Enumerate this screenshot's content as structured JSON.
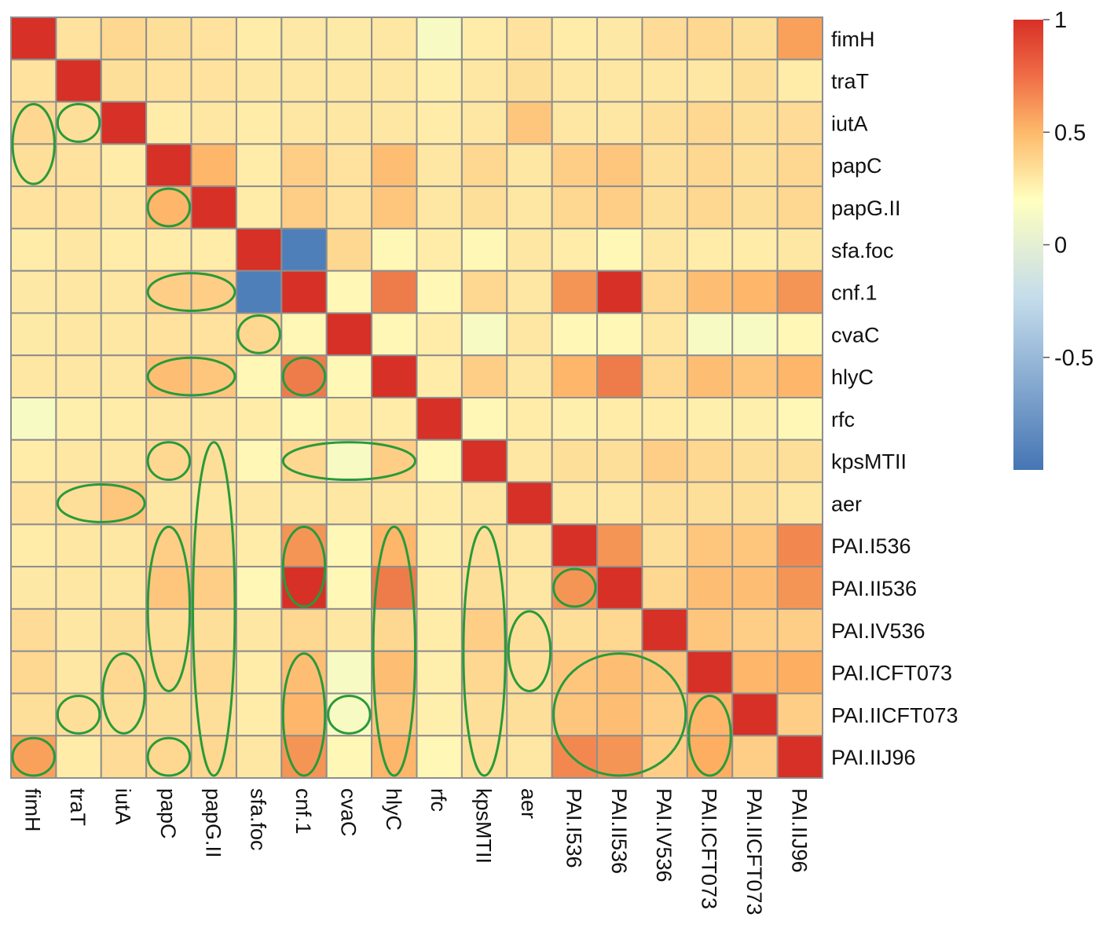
{
  "chart_data": {
    "type": "heatmap",
    "title": "",
    "xlabel": "",
    "ylabel": "",
    "genes": [
      "fimH",
      "traT",
      "iutA",
      "papC",
      "papG.II",
      "sfa.foc",
      "cnf.1",
      "cvaC",
      "hlyC",
      "rfc",
      "kpsMTII",
      "aer",
      "PAI.I536",
      "PAI.II536",
      "PAI.IV536",
      "PAI.ICFT073",
      "PAI.IICFT073",
      "PAI.IIJ96"
    ],
    "values": [
      [
        1.0,
        0.18,
        0.25,
        0.2,
        0.18,
        0.12,
        0.14,
        0.13,
        0.15,
        -0.05,
        0.12,
        0.18,
        0.12,
        0.14,
        0.22,
        0.25,
        0.2,
        0.55
      ],
      [
        0.18,
        1.0,
        0.2,
        0.18,
        0.18,
        0.15,
        0.15,
        0.15,
        0.15,
        0.1,
        0.15,
        0.2,
        0.15,
        0.15,
        0.15,
        0.15,
        0.2,
        0.12
      ],
      [
        0.25,
        0.2,
        1.0,
        0.12,
        0.15,
        0.12,
        0.15,
        0.15,
        0.15,
        0.12,
        0.15,
        0.35,
        0.15,
        0.15,
        0.2,
        0.25,
        0.2,
        0.22
      ],
      [
        0.2,
        0.18,
        0.12,
        1.0,
        0.45,
        0.12,
        0.3,
        0.18,
        0.4,
        0.15,
        0.25,
        0.15,
        0.3,
        0.35,
        0.2,
        0.25,
        0.2,
        0.25
      ],
      [
        0.18,
        0.18,
        0.15,
        0.45,
        1.0,
        0.12,
        0.3,
        0.18,
        0.35,
        0.15,
        0.2,
        0.15,
        0.25,
        0.3,
        0.2,
        0.25,
        0.2,
        0.25
      ],
      [
        0.12,
        0.15,
        0.12,
        0.12,
        0.12,
        1.0,
        -0.95,
        0.25,
        0.05,
        0.12,
        0.05,
        0.15,
        0.12,
        0.05,
        0.15,
        0.12,
        0.12,
        0.15
      ],
      [
        0.14,
        0.15,
        0.15,
        0.3,
        0.3,
        -0.95,
        1.0,
        0.05,
        0.7,
        0.05,
        0.25,
        0.15,
        0.6,
        1.0,
        0.25,
        0.4,
        0.45,
        0.6
      ],
      [
        0.13,
        0.15,
        0.15,
        0.18,
        0.18,
        0.25,
        0.05,
        1.0,
        0.05,
        0.12,
        -0.05,
        0.15,
        0.05,
        0.05,
        0.15,
        -0.05,
        -0.05,
        0.05
      ],
      [
        0.15,
        0.15,
        0.15,
        0.4,
        0.35,
        0.05,
        0.7,
        0.05,
        1.0,
        0.12,
        0.3,
        0.15,
        0.45,
        0.7,
        0.25,
        0.4,
        0.35,
        0.45
      ],
      [
        -0.05,
        0.1,
        0.12,
        0.15,
        0.15,
        0.12,
        0.05,
        0.12,
        0.12,
        1.0,
        0.05,
        0.12,
        0.1,
        0.12,
        0.12,
        0.1,
        0.1,
        0.05
      ],
      [
        0.12,
        0.15,
        0.15,
        0.25,
        0.2,
        0.05,
        0.25,
        -0.05,
        0.3,
        0.05,
        1.0,
        0.15,
        0.2,
        0.2,
        0.3,
        0.25,
        0.2,
        0.2
      ],
      [
        0.18,
        0.2,
        0.35,
        0.15,
        0.15,
        0.15,
        0.15,
        0.15,
        0.15,
        0.12,
        0.15,
        1.0,
        0.15,
        0.15,
        0.2,
        0.2,
        0.2,
        0.15
      ],
      [
        0.12,
        0.15,
        0.15,
        0.3,
        0.25,
        0.12,
        0.6,
        0.05,
        0.45,
        0.1,
        0.2,
        0.15,
        1.0,
        0.6,
        0.2,
        0.35,
        0.35,
        0.65
      ],
      [
        0.14,
        0.15,
        0.15,
        0.35,
        0.3,
        0.05,
        1.0,
        0.05,
        0.7,
        0.12,
        0.2,
        0.15,
        0.6,
        1.0,
        0.25,
        0.4,
        0.4,
        0.6
      ],
      [
        0.22,
        0.15,
        0.2,
        0.2,
        0.2,
        0.15,
        0.25,
        0.15,
        0.25,
        0.12,
        0.3,
        0.2,
        0.2,
        0.25,
        1.0,
        0.35,
        0.3,
        0.3
      ],
      [
        0.25,
        0.15,
        0.25,
        0.25,
        0.25,
        0.12,
        0.4,
        -0.05,
        0.4,
        0.1,
        0.25,
        0.2,
        0.35,
        0.4,
        0.35,
        1.0,
        0.45,
        0.5
      ],
      [
        0.2,
        0.2,
        0.2,
        0.2,
        0.2,
        0.12,
        0.45,
        -0.05,
        0.35,
        0.1,
        0.2,
        0.2,
        0.35,
        0.4,
        0.3,
        0.45,
        1.0,
        0.3
      ],
      [
        0.55,
        0.12,
        0.22,
        0.25,
        0.25,
        0.15,
        0.6,
        0.05,
        0.45,
        0.05,
        0.2,
        0.15,
        0.65,
        0.6,
        0.3,
        0.5,
        0.3,
        1.0
      ]
    ],
    "colorbar": {
      "range": [
        -1,
        1
      ],
      "ticks": [
        1,
        0.5,
        0,
        -0.5
      ],
      "tick_labels": [
        "1",
        "0.5",
        "0",
        "-0.5"
      ],
      "colors": {
        "low": "#4575b4",
        "mid": "#ffffbf",
        "high": "#d73027"
      }
    },
    "highlights": [
      {
        "rows": [
          2,
          3
        ],
        "cols": [
          0,
          0
        ]
      },
      {
        "rows": [
          2,
          2
        ],
        "cols": [
          1,
          1
        ]
      },
      {
        "rows": [
          4,
          4
        ],
        "cols": [
          3,
          3
        ]
      },
      {
        "rows": [
          6,
          6
        ],
        "cols": [
          3,
          4
        ]
      },
      {
        "rows": [
          7,
          7
        ],
        "cols": [
          5,
          5
        ]
      },
      {
        "rows": [
          8,
          8
        ],
        "cols": [
          3,
          4
        ]
      },
      {
        "rows": [
          8,
          8
        ],
        "cols": [
          6,
          6
        ]
      },
      {
        "rows": [
          10,
          10
        ],
        "cols": [
          3,
          3
        ]
      },
      {
        "rows": [
          10,
          17
        ],
        "cols": [
          4,
          4
        ]
      },
      {
        "rows": [
          10,
          10
        ],
        "cols": [
          6,
          8
        ]
      },
      {
        "rows": [
          11,
          11
        ],
        "cols": [
          1,
          2
        ]
      },
      {
        "rows": [
          12,
          15
        ],
        "cols": [
          3,
          3
        ]
      },
      {
        "rows": [
          12,
          13
        ],
        "cols": [
          6,
          6
        ]
      },
      {
        "rows": [
          12,
          17
        ],
        "cols": [
          8,
          8
        ]
      },
      {
        "rows": [
          12,
          17
        ],
        "cols": [
          10,
          10
        ]
      },
      {
        "rows": [
          13,
          13
        ],
        "cols": [
          12,
          12
        ]
      },
      {
        "rows": [
          14,
          15
        ],
        "cols": [
          11,
          11
        ]
      },
      {
        "rows": [
          15,
          16
        ],
        "cols": [
          2,
          2
        ]
      },
      {
        "rows": [
          15,
          17
        ],
        "cols": [
          6,
          6
        ]
      },
      {
        "rows": [
          15,
          17
        ],
        "cols": [
          12,
          14
        ]
      },
      {
        "rows": [
          16,
          17
        ],
        "cols": [
          15,
          15
        ]
      },
      {
        "rows": [
          16,
          16
        ],
        "cols": [
          1,
          1
        ]
      },
      {
        "rows": [
          16,
          16
        ],
        "cols": [
          7,
          7
        ]
      },
      {
        "rows": [
          17,
          17
        ],
        "cols": [
          0,
          0
        ]
      },
      {
        "rows": [
          17,
          17
        ],
        "cols": [
          3,
          3
        ]
      }
    ],
    "highlight_color": "#2a9a3a"
  }
}
